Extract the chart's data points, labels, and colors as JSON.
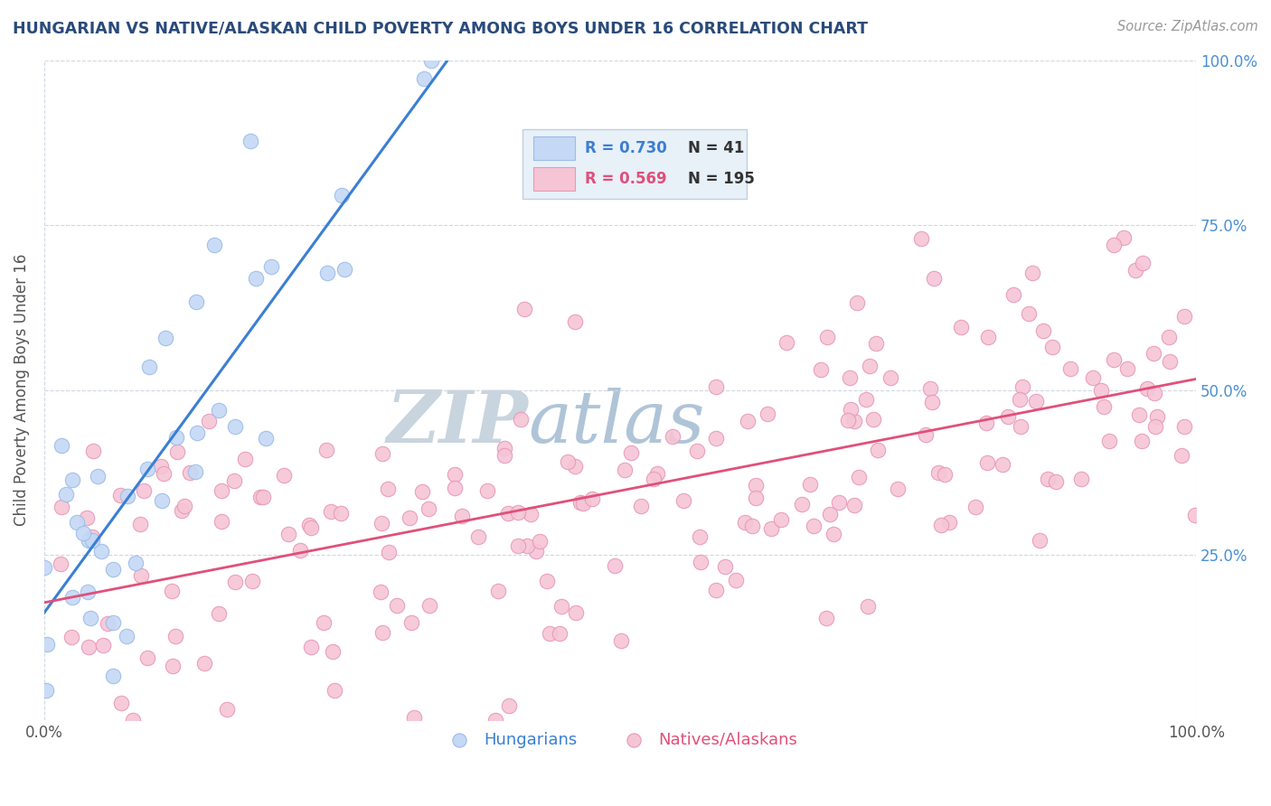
{
  "title": "HUNGARIAN VS NATIVE/ALASKAN CHILD POVERTY AMONG BOYS UNDER 16 CORRELATION CHART",
  "source": "Source: ZipAtlas.com",
  "ylabel": "Child Poverty Among Boys Under 16",
  "xlim": [
    0,
    1
  ],
  "ylim": [
    0,
    1
  ],
  "group1_color": "#c5d8f5",
  "group1_edge_color": "#9bbce8",
  "group1_line_color": "#3a7fd4",
  "group1_R": 0.73,
  "group1_N": 41,
  "group2_color": "#f5c5d5",
  "group2_edge_color": "#e898b8",
  "group2_line_color": "#e0507a",
  "group2_R": 0.569,
  "group2_N": 195,
  "watermark_zip_color": "#c0ccd8",
  "watermark_atlas_color": "#b8c8e0",
  "title_color": "#2a4a7a",
  "axis_label_color": "#555555",
  "tick_color": "#555555",
  "right_tick_color": "#4a90d4",
  "grid_color": "#d0d8e0",
  "background_color": "#ffffff",
  "legend_box_color": "#e8f0f8",
  "legend_box_edge_color": "#c0d0e0",
  "legend_text_color_blue": "#3a7fd4",
  "legend_text_color_pink": "#e0507a",
  "legend_N_color": "#333333"
}
